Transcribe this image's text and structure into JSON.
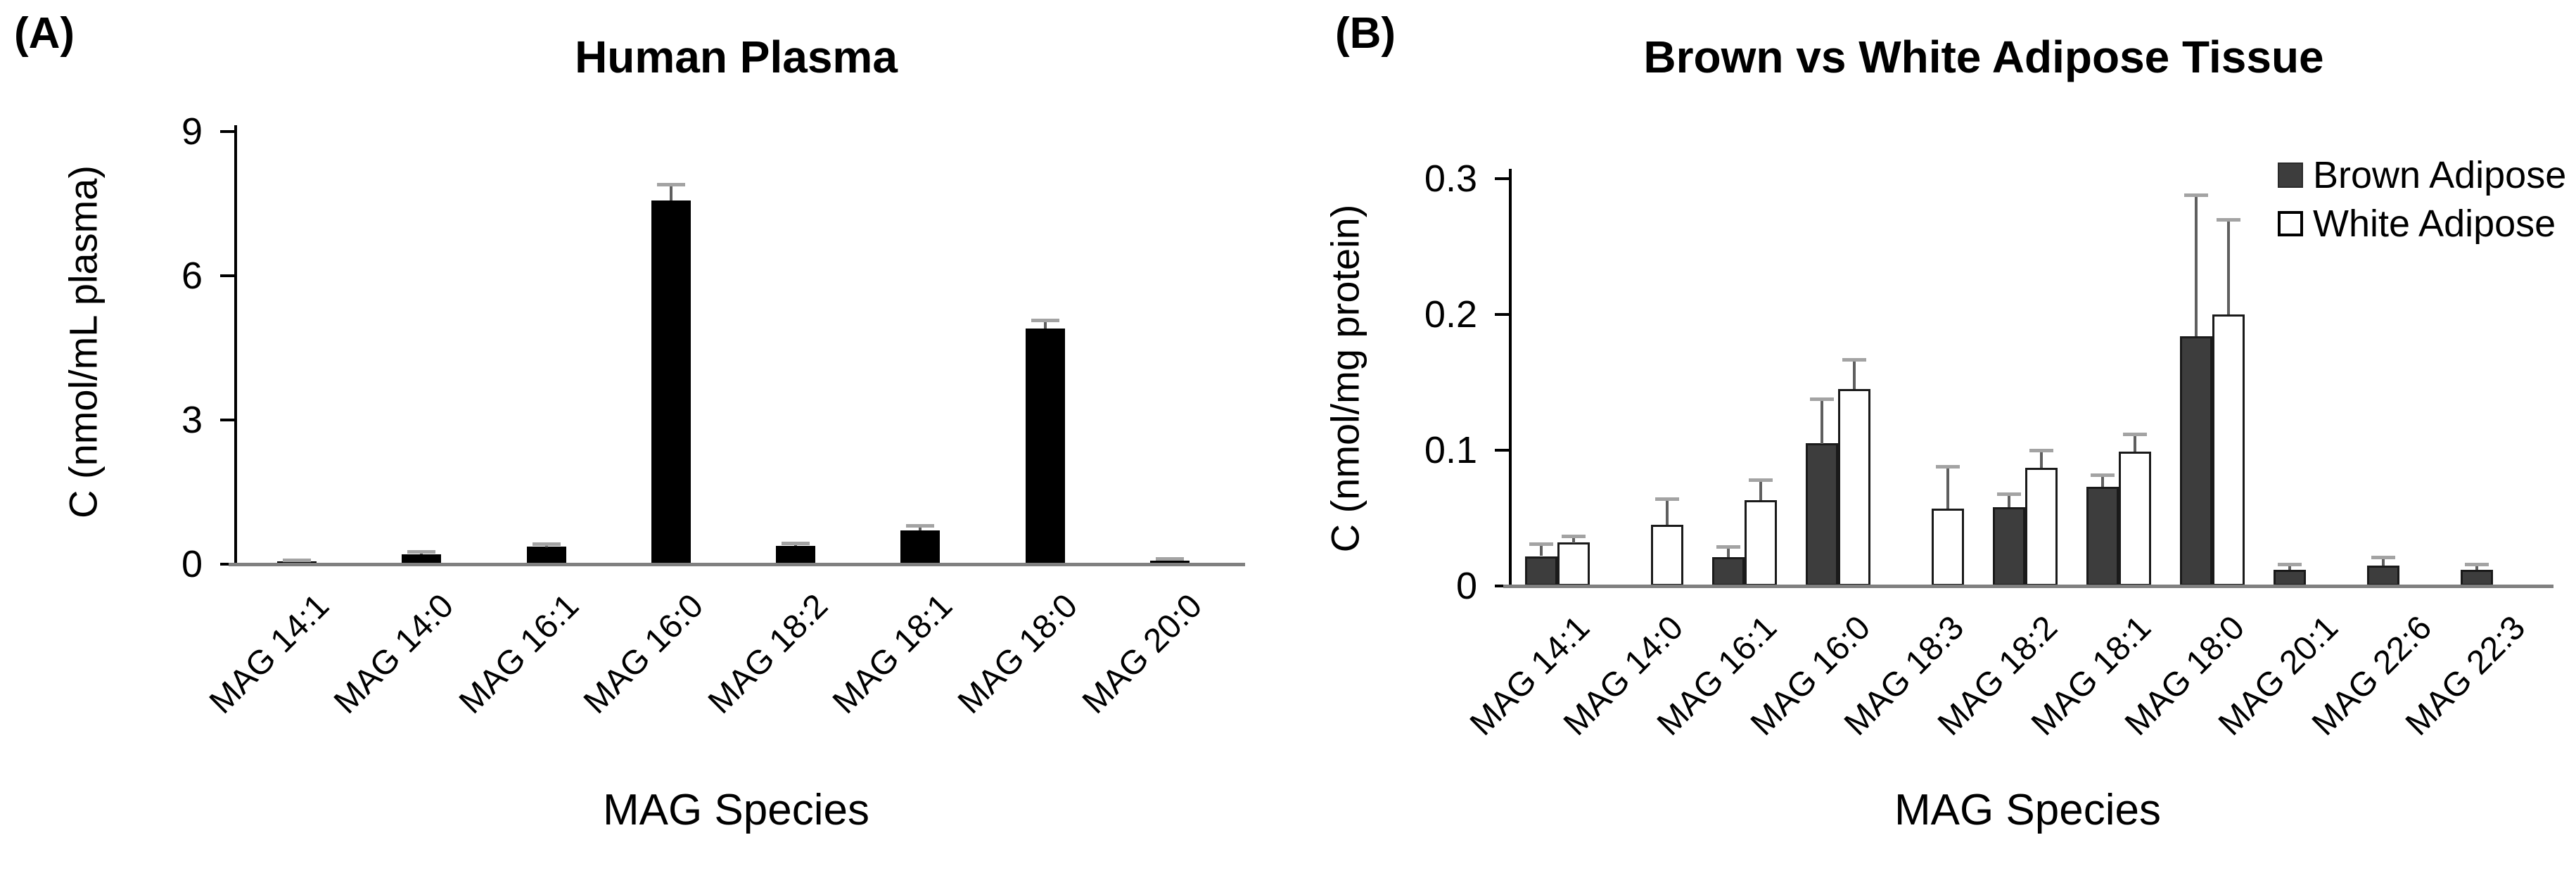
{
  "colors": {
    "bar_black": "#000000",
    "brown_fill": "#3d3d3d",
    "white_fill": "#ffffff",
    "bar_border": "#1a1a1a",
    "baseline_gray": "#808080",
    "error_line": "#5f5f5f",
    "error_cap": "#a3a3a3",
    "text": "#000000",
    "background": "#ffffff"
  },
  "chart_data": [
    {
      "type": "bar",
      "panel_label": "(A)",
      "title": "Human Plasma",
      "xlabel": "MAG Species",
      "ylabel": "C (nmol/mL plasma)",
      "ylim": [
        0,
        9
      ],
      "yticks": [
        0,
        3,
        6,
        9
      ],
      "grid": false,
      "categories": [
        "MAG 14:1",
        "MAG 14:0",
        "MAG 16:1",
        "MAG 16:0",
        "MAG 18:2",
        "MAG 18:1",
        "MAG 18:0",
        "MAG 20:0"
      ],
      "series": [
        {
          "name": "Human Plasma",
          "style": "filled-black",
          "color": "#000000",
          "values": [
            0.06,
            0.2,
            0.36,
            7.57,
            0.38,
            0.7,
            4.9,
            0.07
          ],
          "errors": [
            0.03,
            0.06,
            0.07,
            0.33,
            0.06,
            0.1,
            0.18,
            0.04
          ]
        }
      ]
    },
    {
      "type": "bar",
      "panel_label": "(B)",
      "title": "Brown vs White Adipose Tissue",
      "xlabel": "MAG Species",
      "ylabel": "C (nmol/mg protein)",
      "ylim": [
        0,
        0.3
      ],
      "yticks": [
        0,
        0.1,
        0.2,
        0.3
      ],
      "grid": false,
      "legend_position": "top-right",
      "categories": [
        "MAG 14:1",
        "MAG 14:0",
        "MAG 16:1",
        "MAG 16:0",
        "MAG 18:3",
        "MAG 18:2",
        "MAG 18:1",
        "MAG 18:0",
        "MAG 20:1",
        "MAG 22:6",
        "MAG 22:3"
      ],
      "series": [
        {
          "name": "Brown Adipose",
          "style": "filled-dark",
          "color": "#3d3d3d",
          "values": [
            0.022,
            0,
            0.021,
            0.105,
            0,
            0.058,
            0.073,
            0.184,
            0.012,
            0.015,
            0.012
          ],
          "errors": [
            0.009,
            0,
            0.008,
            0.033,
            0,
            0.01,
            0.009,
            0.104,
            0.004,
            0.006,
            0.004
          ]
        },
        {
          "name": "White Adipose",
          "style": "open",
          "color": "#ffffff",
          "values": [
            0.032,
            0.045,
            0.063,
            0.145,
            0.057,
            0.087,
            0.099,
            0.2,
            0,
            0,
            0
          ],
          "errors": [
            0.005,
            0.019,
            0.015,
            0.022,
            0.031,
            0.013,
            0.013,
            0.07,
            0,
            0,
            0
          ]
        }
      ]
    }
  ]
}
